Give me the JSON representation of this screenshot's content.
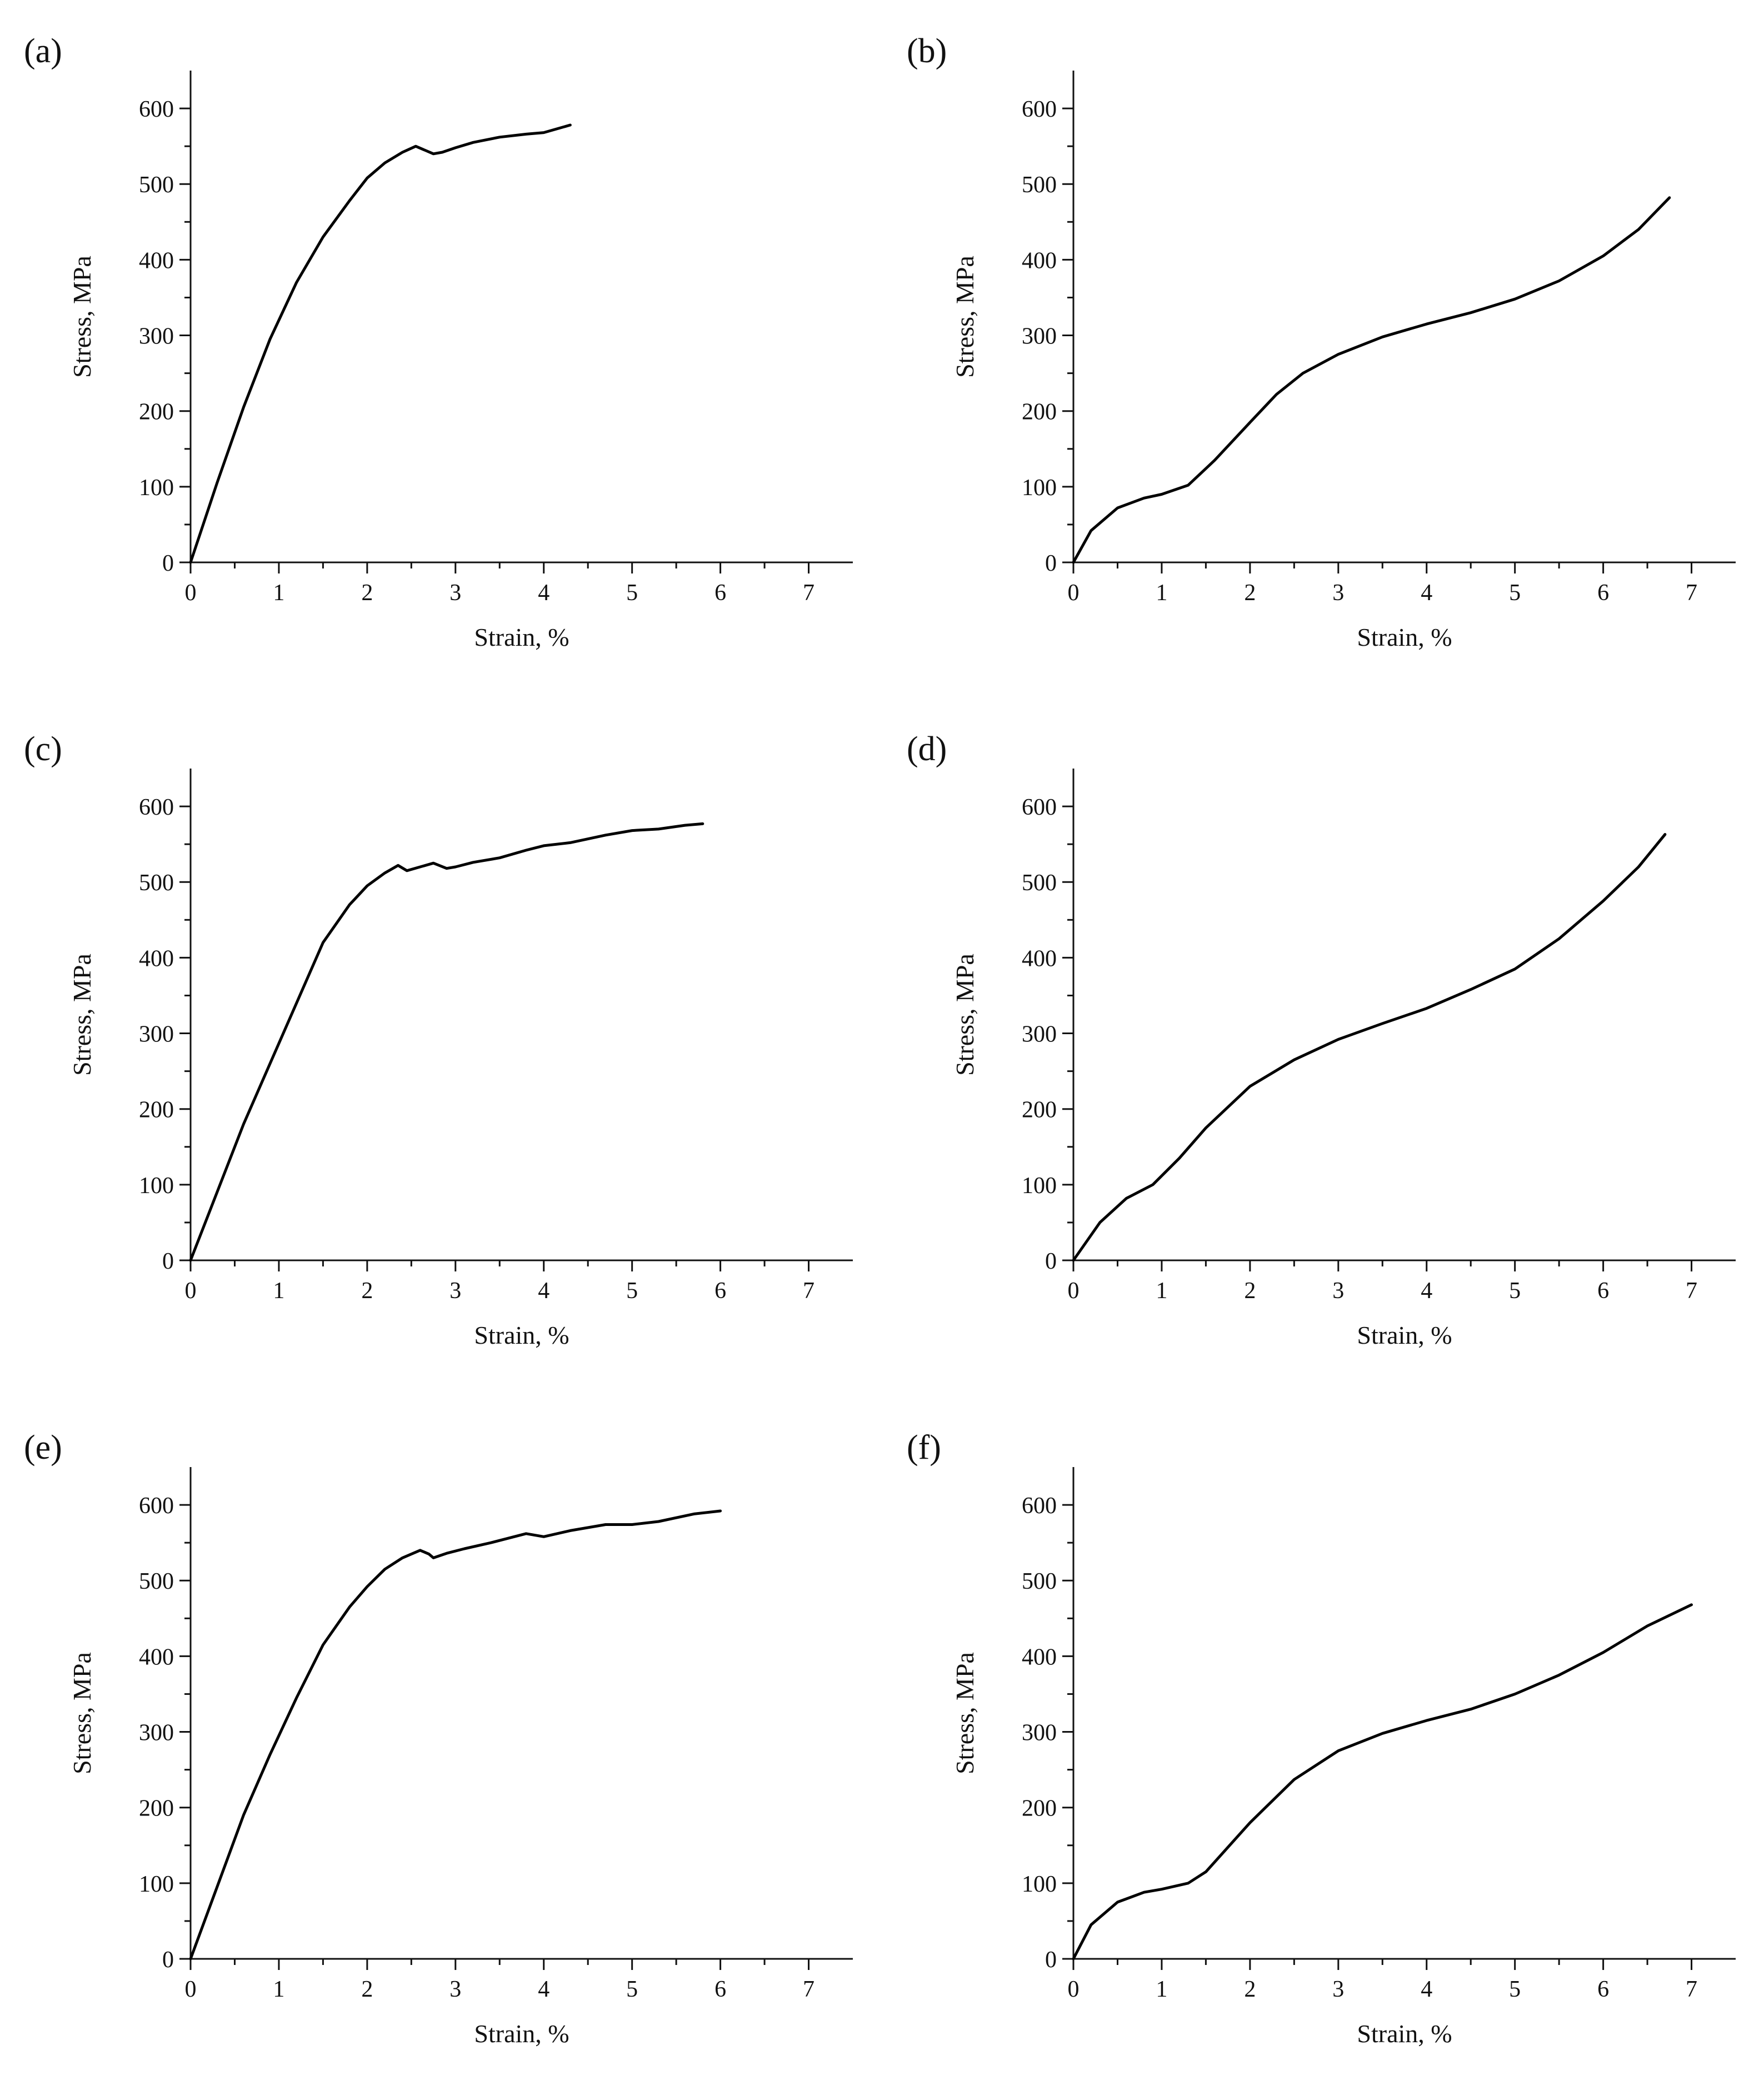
{
  "chart_data": [
    {
      "type": "line",
      "panel_label": "(a)",
      "xlabel": "Strain, %",
      "ylabel": "Stress, MPa",
      "xlim": [
        0,
        7.5
      ],
      "ylim": [
        0,
        650
      ],
      "xticks": [
        0,
        1,
        2,
        3,
        4,
        5,
        6,
        7
      ],
      "yticks": [
        0,
        100,
        200,
        300,
        400,
        500,
        600
      ],
      "series": [
        {
          "name": "(a)",
          "x": [
            0,
            0.3,
            0.6,
            0.9,
            1.2,
            1.5,
            1.8,
            2.0,
            2.2,
            2.4,
            2.55,
            2.65,
            2.75,
            2.85,
            3.0,
            3.2,
            3.5,
            3.8,
            4.0,
            4.3
          ],
          "y": [
            0,
            105,
            205,
            295,
            370,
            430,
            478,
            508,
            528,
            542,
            550,
            545,
            540,
            542,
            548,
            555,
            562,
            566,
            568,
            578
          ]
        }
      ]
    },
    {
      "type": "line",
      "panel_label": "(b)",
      "xlabel": "Strain, %",
      "ylabel": "Stress, MPa",
      "xlim": [
        0,
        7.5
      ],
      "ylim": [
        0,
        650
      ],
      "xticks": [
        0,
        1,
        2,
        3,
        4,
        5,
        6,
        7
      ],
      "yticks": [
        0,
        100,
        200,
        300,
        400,
        500,
        600
      ],
      "series": [
        {
          "name": "(b)",
          "x": [
            0,
            0.2,
            0.5,
            0.8,
            1.0,
            1.3,
            1.6,
            2.0,
            2.3,
            2.6,
            3.0,
            3.5,
            4.0,
            4.5,
            5.0,
            5.5,
            6.0,
            6.4,
            6.75
          ],
          "y": [
            0,
            42,
            72,
            85,
            90,
            102,
            135,
            185,
            222,
            250,
            275,
            298,
            315,
            330,
            348,
            372,
            405,
            440,
            482
          ]
        }
      ]
    },
    {
      "type": "line",
      "panel_label": "(c)",
      "xlabel": "Strain, %",
      "ylabel": "Stress, MPa",
      "xlim": [
        0,
        7.5
      ],
      "ylim": [
        0,
        650
      ],
      "xticks": [
        0,
        1,
        2,
        3,
        4,
        5,
        6,
        7
      ],
      "yticks": [
        0,
        100,
        200,
        300,
        400,
        500,
        600
      ],
      "series": [
        {
          "name": "(c)",
          "x": [
            0,
            0.3,
            0.6,
            0.9,
            1.2,
            1.5,
            1.8,
            2.0,
            2.2,
            2.35,
            2.45,
            2.6,
            2.75,
            2.9,
            3.0,
            3.2,
            3.5,
            3.8,
            4.0,
            4.3,
            4.7,
            5.0,
            5.3,
            5.6,
            5.8
          ],
          "y": [
            0,
            90,
            180,
            260,
            340,
            420,
            470,
            495,
            512,
            522,
            515,
            520,
            525,
            518,
            520,
            526,
            532,
            542,
            548,
            552,
            562,
            568,
            570,
            575,
            577
          ]
        }
      ]
    },
    {
      "type": "line",
      "panel_label": "(d)",
      "xlabel": "Strain, %",
      "ylabel": "Stress, MPa",
      "xlim": [
        0,
        7.5
      ],
      "ylim": [
        0,
        650
      ],
      "xticks": [
        0,
        1,
        2,
        3,
        4,
        5,
        6,
        7
      ],
      "yticks": [
        0,
        100,
        200,
        300,
        400,
        500,
        600
      ],
      "series": [
        {
          "name": "(d)",
          "x": [
            0,
            0.3,
            0.6,
            0.9,
            1.2,
            1.5,
            2.0,
            2.5,
            3.0,
            3.5,
            4.0,
            4.5,
            5.0,
            5.5,
            6.0,
            6.4,
            6.7
          ],
          "y": [
            0,
            50,
            82,
            100,
            135,
            175,
            230,
            265,
            292,
            313,
            333,
            358,
            385,
            425,
            475,
            520,
            563
          ]
        }
      ]
    },
    {
      "type": "line",
      "panel_label": "(e)",
      "xlabel": "Strain, %",
      "ylabel": "Stress, MPa",
      "xlim": [
        0,
        7.5
      ],
      "ylim": [
        0,
        650
      ],
      "xticks": [
        0,
        1,
        2,
        3,
        4,
        5,
        6,
        7
      ],
      "yticks": [
        0,
        100,
        200,
        300,
        400,
        500,
        600
      ],
      "series": [
        {
          "name": "(e)",
          "x": [
            0,
            0.3,
            0.6,
            0.9,
            1.2,
            1.5,
            1.8,
            2.0,
            2.2,
            2.4,
            2.6,
            2.7,
            2.75,
            2.9,
            3.1,
            3.4,
            3.8,
            4.0,
            4.3,
            4.7,
            5.0,
            5.3,
            5.7,
            6.0
          ],
          "y": [
            0,
            95,
            190,
            270,
            345,
            415,
            465,
            492,
            515,
            530,
            540,
            535,
            530,
            536,
            542,
            550,
            562,
            558,
            566,
            574,
            574,
            578,
            588,
            592
          ]
        }
      ]
    },
    {
      "type": "line",
      "panel_label": "(f)",
      "xlabel": "Strain, %",
      "ylabel": "Stress, MPa",
      "xlim": [
        0,
        7.5
      ],
      "ylim": [
        0,
        650
      ],
      "xticks": [
        0,
        1,
        2,
        3,
        4,
        5,
        6,
        7
      ],
      "yticks": [
        0,
        100,
        200,
        300,
        400,
        500,
        600
      ],
      "series": [
        {
          "name": "(f)",
          "x": [
            0,
            0.2,
            0.5,
            0.8,
            1.0,
            1.3,
            1.5,
            2.0,
            2.5,
            3.0,
            3.5,
            4.0,
            4.5,
            5.0,
            5.5,
            6.0,
            6.5,
            7.0
          ],
          "y": [
            0,
            45,
            75,
            88,
            92,
            100,
            115,
            180,
            237,
            275,
            298,
            315,
            330,
            350,
            375,
            405,
            440,
            468
          ]
        }
      ]
    }
  ]
}
